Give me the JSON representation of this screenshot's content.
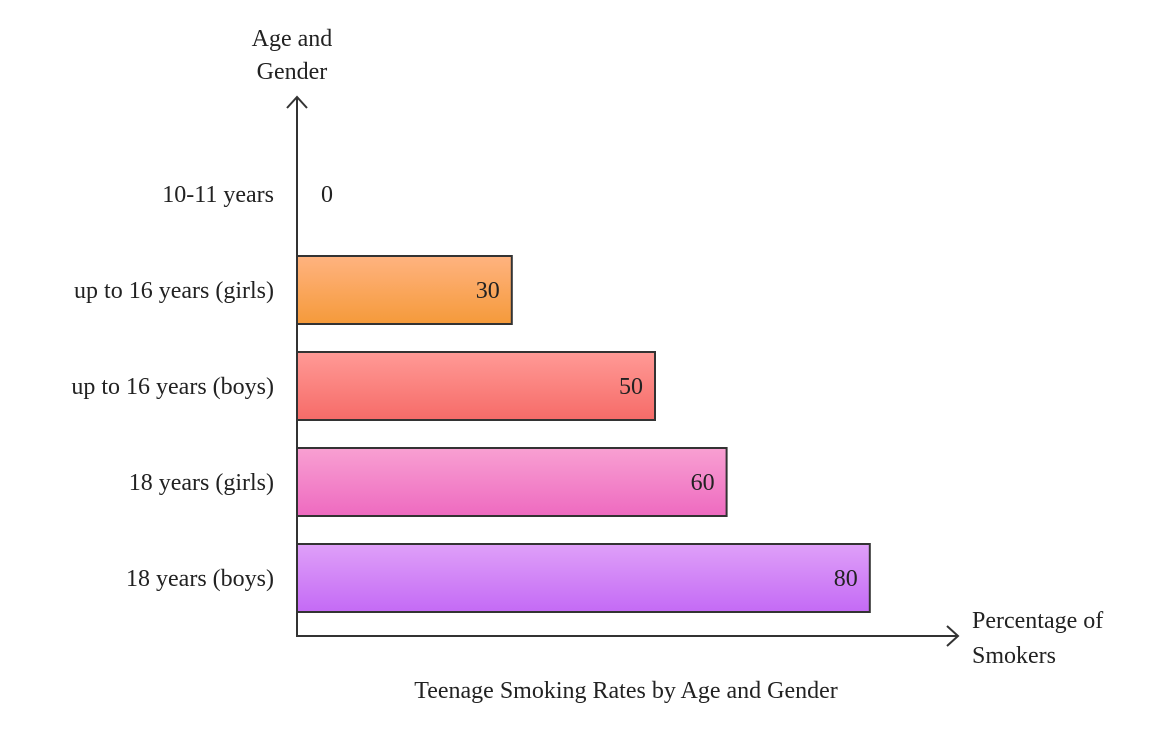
{
  "chart_data": {
    "type": "bar",
    "orientation": "horizontal",
    "title": "Teenage Smoking Rates by Age and Gender",
    "ylabel": "Age and Gender",
    "xlabel": "Percentage of Smokers",
    "categories": [
      "10-11 years",
      "up to 16 years (girls)",
      "up to 16 years (boys)",
      "18 years (girls)",
      "18 years (boys)"
    ],
    "values": [
      0,
      30,
      50,
      60,
      80
    ],
    "bar_colors": [
      [
        "#ffb380",
        "#f08a2e"
      ],
      [
        "#ffb380",
        "#f59a3a"
      ],
      [
        "#ff9a96",
        "#f66b68"
      ],
      [
        "#f8a0d2",
        "#ee6ac0"
      ],
      [
        "#dfa0f8",
        "#c46af5"
      ]
    ],
    "xlim": [
      0,
      100
    ],
    "grid": false,
    "legend": "none"
  }
}
